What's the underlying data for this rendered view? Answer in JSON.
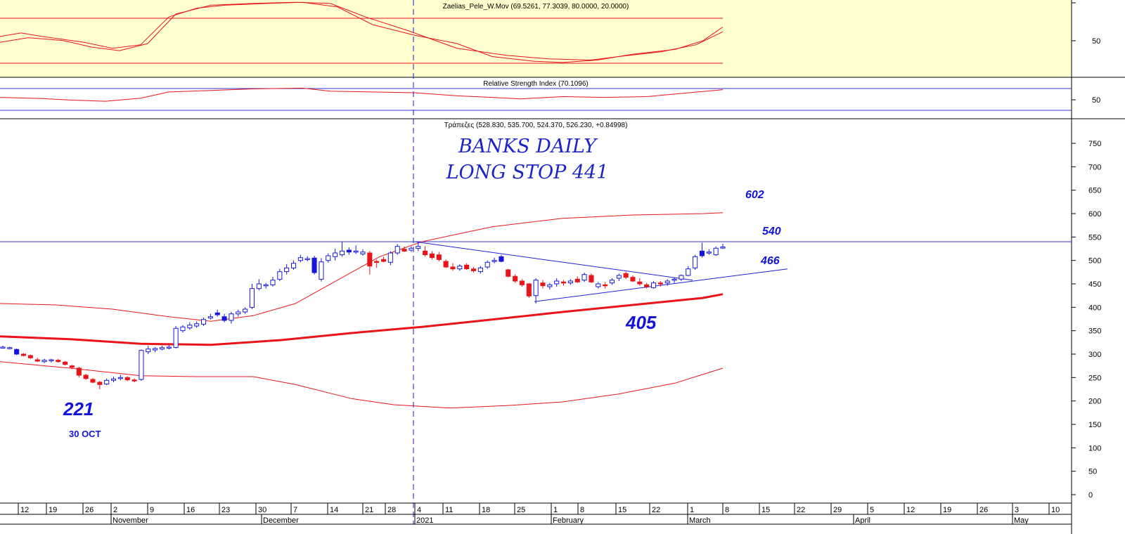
{
  "panels": {
    "stoch": {
      "title": "Zaelias_Pele_W.Mov (69.5261, 77.3039, 80.0000, 20.0000)",
      "scale_label": "50",
      "upper_level": 80,
      "lower_level": 20
    },
    "rsi": {
      "title": "Relative Strength Index (70.1096)",
      "scale_label": "50",
      "upper_level": 70,
      "lower_level": 30
    },
    "price": {
      "title": "Τράπεζες (528.830, 535.700, 524.370, 526.230, +0.84998)"
    }
  },
  "annotations": {
    "handwritten_line1": "BANKS DAILY",
    "handwritten_line2": "LONG STOP 441",
    "level_602": "602",
    "level_540": "540",
    "level_466": "466",
    "level_405": "405",
    "level_221": "221",
    "note_date": "30 OCT"
  },
  "colors": {
    "indicator_bg": "#ffffd0",
    "bollinger": "#e8141a",
    "ma": "#e8141a",
    "up_candle_border": "#1a1adc",
    "down_candle": "#e8141a",
    "blue_candle_fill": "#1414e0",
    "trendline": "#2020d0",
    "annotation": "#1414d8"
  },
  "chart_data": {
    "type": "candlestick",
    "title": "Τράπεζες (528.830, 535.700, 524.370, 526.230, +0.84998)",
    "ylim": [
      0,
      780
    ],
    "yticks": [
      0,
      50,
      100,
      150,
      200,
      250,
      300,
      350,
      400,
      450,
      500,
      550,
      600,
      650,
      700,
      750
    ],
    "xlabels": {
      "days": [
        "12",
        "19",
        "26",
        "2",
        "9",
        "16",
        "23",
        "30",
        "7",
        "14",
        "21",
        "28",
        "4",
        "11",
        "18",
        "25",
        "1",
        "8",
        "15",
        "22",
        "1",
        "8",
        "15",
        "22",
        "29",
        "5",
        "12",
        "19",
        "26",
        "3",
        "10"
      ],
      "months": [
        "November",
        "December",
        "2021",
        "February",
        "March",
        "April",
        "May"
      ]
    },
    "candles": [
      {
        "o": 315,
        "h": 318,
        "l": 312,
        "c": 314,
        "t": "u"
      },
      {
        "o": 314,
        "h": 316,
        "l": 310,
        "c": 313,
        "t": "u"
      },
      {
        "o": 310,
        "h": 312,
        "l": 298,
        "c": 300,
        "t": "b"
      },
      {
        "o": 300,
        "h": 302,
        "l": 295,
        "c": 297,
        "t": "d"
      },
      {
        "o": 297,
        "h": 299,
        "l": 290,
        "c": 292,
        "t": "d"
      },
      {
        "o": 288,
        "h": 292,
        "l": 283,
        "c": 285,
        "t": "d"
      },
      {
        "o": 284,
        "h": 290,
        "l": 281,
        "c": 287,
        "t": "u"
      },
      {
        "o": 286,
        "h": 290,
        "l": 282,
        "c": 288,
        "t": "u"
      },
      {
        "o": 287,
        "h": 290,
        "l": 282,
        "c": 284,
        "t": "d"
      },
      {
        "o": 283,
        "h": 285,
        "l": 276,
        "c": 278,
        "t": "d"
      },
      {
        "o": 275,
        "h": 277,
        "l": 268,
        "c": 272,
        "t": "d"
      },
      {
        "o": 270,
        "h": 273,
        "l": 250,
        "c": 255,
        "t": "d"
      },
      {
        "o": 255,
        "h": 258,
        "l": 245,
        "c": 248,
        "t": "d"
      },
      {
        "o": 246,
        "h": 249,
        "l": 238,
        "c": 240,
        "t": "d"
      },
      {
        "o": 240,
        "h": 243,
        "l": 225,
        "c": 235,
        "t": "d"
      },
      {
        "o": 236,
        "h": 248,
        "l": 234,
        "c": 244,
        "t": "u"
      },
      {
        "o": 244,
        "h": 252,
        "l": 240,
        "c": 247,
        "t": "u"
      },
      {
        "o": 248,
        "h": 256,
        "l": 244,
        "c": 250,
        "t": "u"
      },
      {
        "o": 250,
        "h": 253,
        "l": 242,
        "c": 245,
        "t": "d"
      },
      {
        "o": 245,
        "h": 248,
        "l": 240,
        "c": 243,
        "t": "d"
      },
      {
        "o": 246,
        "h": 310,
        "l": 243,
        "c": 308,
        "t": "u"
      },
      {
        "o": 305,
        "h": 318,
        "l": 300,
        "c": 311,
        "t": "u"
      },
      {
        "o": 309,
        "h": 315,
        "l": 304,
        "c": 312,
        "t": "u"
      },
      {
        "o": 311,
        "h": 318,
        "l": 308,
        "c": 314,
        "t": "u"
      },
      {
        "o": 313,
        "h": 320,
        "l": 310,
        "c": 315,
        "t": "u"
      },
      {
        "o": 314,
        "h": 360,
        "l": 312,
        "c": 355,
        "t": "u"
      },
      {
        "o": 350,
        "h": 362,
        "l": 346,
        "c": 358,
        "t": "u"
      },
      {
        "o": 356,
        "h": 368,
        "l": 352,
        "c": 362,
        "t": "u"
      },
      {
        "o": 360,
        "h": 370,
        "l": 356,
        "c": 365,
        "t": "u"
      },
      {
        "o": 364,
        "h": 378,
        "l": 360,
        "c": 374,
        "t": "u"
      },
      {
        "o": 380,
        "h": 386,
        "l": 374,
        "c": 377,
        "t": "u"
      },
      {
        "o": 388,
        "h": 395,
        "l": 380,
        "c": 384,
        "t": "b"
      },
      {
        "o": 380,
        "h": 386,
        "l": 368,
        "c": 372,
        "t": "b"
      },
      {
        "o": 372,
        "h": 390,
        "l": 365,
        "c": 386,
        "t": "u"
      },
      {
        "o": 386,
        "h": 395,
        "l": 380,
        "c": 390,
        "t": "u"
      },
      {
        "o": 390,
        "h": 400,
        "l": 386,
        "c": 396,
        "t": "u"
      },
      {
        "o": 400,
        "h": 450,
        "l": 396,
        "c": 440,
        "t": "u"
      },
      {
        "o": 440,
        "h": 460,
        "l": 436,
        "c": 450,
        "t": "u"
      },
      {
        "o": 446,
        "h": 452,
        "l": 440,
        "c": 448,
        "t": "u"
      },
      {
        "o": 448,
        "h": 465,
        "l": 444,
        "c": 458,
        "t": "u"
      },
      {
        "o": 460,
        "h": 482,
        "l": 456,
        "c": 476,
        "t": "u"
      },
      {
        "o": 476,
        "h": 492,
        "l": 470,
        "c": 484,
        "t": "u"
      },
      {
        "o": 484,
        "h": 500,
        "l": 480,
        "c": 494,
        "t": "u"
      },
      {
        "o": 500,
        "h": 512,
        "l": 496,
        "c": 506,
        "t": "u"
      },
      {
        "o": 504,
        "h": 509,
        "l": 498,
        "c": 503,
        "t": "u"
      },
      {
        "o": 505,
        "h": 510,
        "l": 470,
        "c": 474,
        "t": "b"
      },
      {
        "o": 460,
        "h": 505,
        "l": 455,
        "c": 497,
        "t": "u"
      },
      {
        "o": 500,
        "h": 515,
        "l": 495,
        "c": 510,
        "t": "u"
      },
      {
        "o": 508,
        "h": 525,
        "l": 500,
        "c": 516,
        "t": "u"
      },
      {
        "o": 512,
        "h": 540,
        "l": 508,
        "c": 520,
        "t": "u"
      },
      {
        "o": 518,
        "h": 528,
        "l": 512,
        "c": 522,
        "t": "b"
      },
      {
        "o": 520,
        "h": 532,
        "l": 514,
        "c": 518,
        "t": "u"
      },
      {
        "o": 518,
        "h": 524,
        "l": 510,
        "c": 514,
        "t": "u"
      },
      {
        "o": 516,
        "h": 520,
        "l": 470,
        "c": 488,
        "t": "d"
      },
      {
        "o": 496,
        "h": 502,
        "l": 484,
        "c": 498,
        "t": "d"
      },
      {
        "o": 502,
        "h": 508,
        "l": 496,
        "c": 498,
        "t": "d"
      },
      {
        "o": 496,
        "h": 520,
        "l": 490,
        "c": 516,
        "t": "u"
      },
      {
        "o": 516,
        "h": 535,
        "l": 512,
        "c": 530,
        "t": "u"
      },
      {
        "o": 524,
        "h": 530,
        "l": 518,
        "c": 520,
        "t": "d"
      },
      {
        "o": 522,
        "h": 530,
        "l": 518,
        "c": 526,
        "t": "u"
      },
      {
        "o": 526,
        "h": 540,
        "l": 520,
        "c": 530,
        "t": "u"
      },
      {
        "o": 520,
        "h": 530,
        "l": 508,
        "c": 512,
        "t": "d"
      },
      {
        "o": 514,
        "h": 520,
        "l": 502,
        "c": 506,
        "t": "d"
      },
      {
        "o": 512,
        "h": 518,
        "l": 498,
        "c": 502,
        "t": "d"
      },
      {
        "o": 498,
        "h": 502,
        "l": 484,
        "c": 486,
        "t": "d"
      },
      {
        "o": 486,
        "h": 494,
        "l": 478,
        "c": 482,
        "t": "d"
      },
      {
        "o": 482,
        "h": 492,
        "l": 478,
        "c": 488,
        "t": "u"
      },
      {
        "o": 490,
        "h": 494,
        "l": 480,
        "c": 482,
        "t": "d"
      },
      {
        "o": 482,
        "h": 486,
        "l": 474,
        "c": 478,
        "t": "d"
      },
      {
        "o": 476,
        "h": 488,
        "l": 472,
        "c": 484,
        "t": "u"
      },
      {
        "o": 486,
        "h": 500,
        "l": 482,
        "c": 496,
        "t": "u"
      },
      {
        "o": 498,
        "h": 506,
        "l": 494,
        "c": 500,
        "t": "u"
      },
      {
        "o": 508,
        "h": 512,
        "l": 496,
        "c": 498,
        "t": "b"
      },
      {
        "o": 480,
        "h": 482,
        "l": 464,
        "c": 466,
        "t": "d"
      },
      {
        "o": 466,
        "h": 470,
        "l": 452,
        "c": 456,
        "t": "d"
      },
      {
        "o": 456,
        "h": 460,
        "l": 444,
        "c": 448,
        "t": "d"
      },
      {
        "o": 450,
        "h": 452,
        "l": 420,
        "c": 424,
        "t": "d"
      },
      {
        "o": 425,
        "h": 462,
        "l": 408,
        "c": 458,
        "t": "u"
      },
      {
        "o": 452,
        "h": 458,
        "l": 440,
        "c": 446,
        "t": "d"
      },
      {
        "o": 444,
        "h": 452,
        "l": 438,
        "c": 448,
        "t": "u"
      },
      {
        "o": 450,
        "h": 462,
        "l": 444,
        "c": 456,
        "t": "u"
      },
      {
        "o": 454,
        "h": 458,
        "l": 446,
        "c": 452,
        "t": "d"
      },
      {
        "o": 452,
        "h": 460,
        "l": 448,
        "c": 456,
        "t": "u"
      },
      {
        "o": 460,
        "h": 466,
        "l": 452,
        "c": 454,
        "t": "d"
      },
      {
        "o": 458,
        "h": 474,
        "l": 454,
        "c": 470,
        "t": "u"
      },
      {
        "o": 468,
        "h": 472,
        "l": 452,
        "c": 454,
        "t": "d"
      },
      {
        "o": 444,
        "h": 454,
        "l": 440,
        "c": 450,
        "t": "u"
      },
      {
        "o": 448,
        "h": 454,
        "l": 440,
        "c": 446,
        "t": "d"
      },
      {
        "o": 452,
        "h": 462,
        "l": 448,
        "c": 458,
        "t": "u"
      },
      {
        "o": 462,
        "h": 472,
        "l": 456,
        "c": 468,
        "t": "u"
      },
      {
        "o": 472,
        "h": 476,
        "l": 460,
        "c": 464,
        "t": "d"
      },
      {
        "o": 464,
        "h": 468,
        "l": 454,
        "c": 456,
        "t": "d"
      },
      {
        "o": 454,
        "h": 462,
        "l": 446,
        "c": 450,
        "t": "d"
      },
      {
        "o": 448,
        "h": 452,
        "l": 440,
        "c": 444,
        "t": "d"
      },
      {
        "o": 442,
        "h": 456,
        "l": 440,
        "c": 452,
        "t": "u"
      },
      {
        "o": 450,
        "h": 456,
        "l": 444,
        "c": 452,
        "t": "d"
      },
      {
        "o": 452,
        "h": 460,
        "l": 446,
        "c": 456,
        "t": "u"
      },
      {
        "o": 458,
        "h": 464,
        "l": 452,
        "c": 460,
        "t": "u"
      },
      {
        "o": 460,
        "h": 470,
        "l": 456,
        "c": 468,
        "t": "u"
      },
      {
        "o": 468,
        "h": 488,
        "l": 466,
        "c": 482,
        "t": "u"
      },
      {
        "o": 484,
        "h": 512,
        "l": 480,
        "c": 508,
        "t": "u"
      },
      {
        "o": 510,
        "h": 538,
        "l": 506,
        "c": 520,
        "t": "b"
      },
      {
        "o": 518,
        "h": 524,
        "l": 512,
        "c": 516,
        "t": "u"
      },
      {
        "o": 512,
        "h": 530,
        "l": 510,
        "c": 526,
        "t": "u"
      },
      {
        "o": 528.83,
        "h": 535.7,
        "l": 524.37,
        "c": 526.23,
        "t": "u"
      }
    ],
    "moving_average": [
      [
        0,
        338
      ],
      [
        100,
        332
      ],
      [
        200,
        322
      ],
      [
        300,
        320
      ],
      [
        400,
        330
      ],
      [
        500,
        345
      ],
      [
        600,
        358
      ],
      [
        700,
        374
      ],
      [
        800,
        390
      ],
      [
        900,
        405
      ],
      [
        1000,
        420
      ],
      [
        1028,
        428
      ]
    ],
    "bollinger_upper": [
      [
        0,
        408
      ],
      [
        80,
        405
      ],
      [
        160,
        396
      ],
      [
        240,
        380
      ],
      [
        300,
        370
      ],
      [
        360,
        382
      ],
      [
        420,
        408
      ],
      [
        480,
        458
      ],
      [
        540,
        508
      ],
      [
        600,
        540
      ],
      [
        700,
        572
      ],
      [
        800,
        590
      ],
      [
        900,
        597
      ],
      [
        1000,
        600
      ],
      [
        1028,
        602
      ]
    ],
    "bollinger_lower": [
      [
        0,
        284
      ],
      [
        100,
        270
      ],
      [
        200,
        254
      ],
      [
        280,
        252
      ],
      [
        360,
        252
      ],
      [
        420,
        235
      ],
      [
        500,
        205
      ],
      [
        560,
        192
      ],
      [
        640,
        185
      ],
      [
        720,
        190
      ],
      [
        800,
        198
      ],
      [
        880,
        215
      ],
      [
        960,
        238
      ],
      [
        1028,
        270
      ]
    ],
    "horizontal_line": 540,
    "trendline_down": [
      [
        590,
        540
      ],
      [
        985,
        458
      ]
    ],
    "trendline_up": [
      [
        760,
        412
      ],
      [
        1120,
        482
      ]
    ],
    "stochastic": {
      "lines": [
        [
          [
            0,
            62
          ],
          [
            30,
            68
          ],
          [
            60,
            62
          ],
          [
            120,
            52
          ],
          [
            160,
            42
          ],
          [
            200,
            48
          ],
          [
            240,
            95
          ],
          [
            280,
            110
          ],
          [
            320,
            115
          ],
          [
            380,
            118
          ],
          [
            430,
            120
          ],
          [
            480,
            112
          ],
          [
            530,
            82
          ],
          [
            590,
            64
          ],
          [
            650,
            50
          ],
          [
            700,
            28
          ],
          [
            760,
            20
          ],
          [
            800,
            18
          ],
          [
            850,
            22
          ],
          [
            900,
            32
          ],
          [
            960,
            40
          ],
          [
            1000,
            55
          ],
          [
            1028,
            78
          ]
        ],
        [
          [
            0,
            52
          ],
          [
            40,
            60
          ],
          [
            90,
            55
          ],
          [
            130,
            44
          ],
          [
            170,
            38
          ],
          [
            210,
            50
          ],
          [
            250,
            100
          ],
          [
            300,
            115
          ],
          [
            360,
            118
          ],
          [
            420,
            120
          ],
          [
            470,
            118
          ],
          [
            520,
            95
          ],
          [
            580,
            72
          ],
          [
            650,
            42
          ],
          [
            720,
            30
          ],
          [
            780,
            24
          ],
          [
            840,
            22
          ],
          [
            880,
            28
          ],
          [
            940,
            36
          ],
          [
            990,
            48
          ],
          [
            1028,
            70
          ]
        ]
      ]
    },
    "rsi": {
      "line": [
        [
          0,
          48
        ],
        [
          60,
          45
        ],
        [
          100,
          41
        ],
        [
          150,
          38
        ],
        [
          200,
          46
        ],
        [
          240,
          62
        ],
        [
          300,
          66
        ],
        [
          360,
          70
        ],
        [
          430,
          72
        ],
        [
          470,
          64
        ],
        [
          530,
          62
        ],
        [
          590,
          60
        ],
        [
          650,
          52
        ],
        [
          700,
          48
        ],
        [
          740,
          44
        ],
        [
          800,
          50
        ],
        [
          860,
          48
        ],
        [
          920,
          50
        ],
        [
          980,
          60
        ],
        [
          1028,
          68
        ]
      ]
    }
  }
}
